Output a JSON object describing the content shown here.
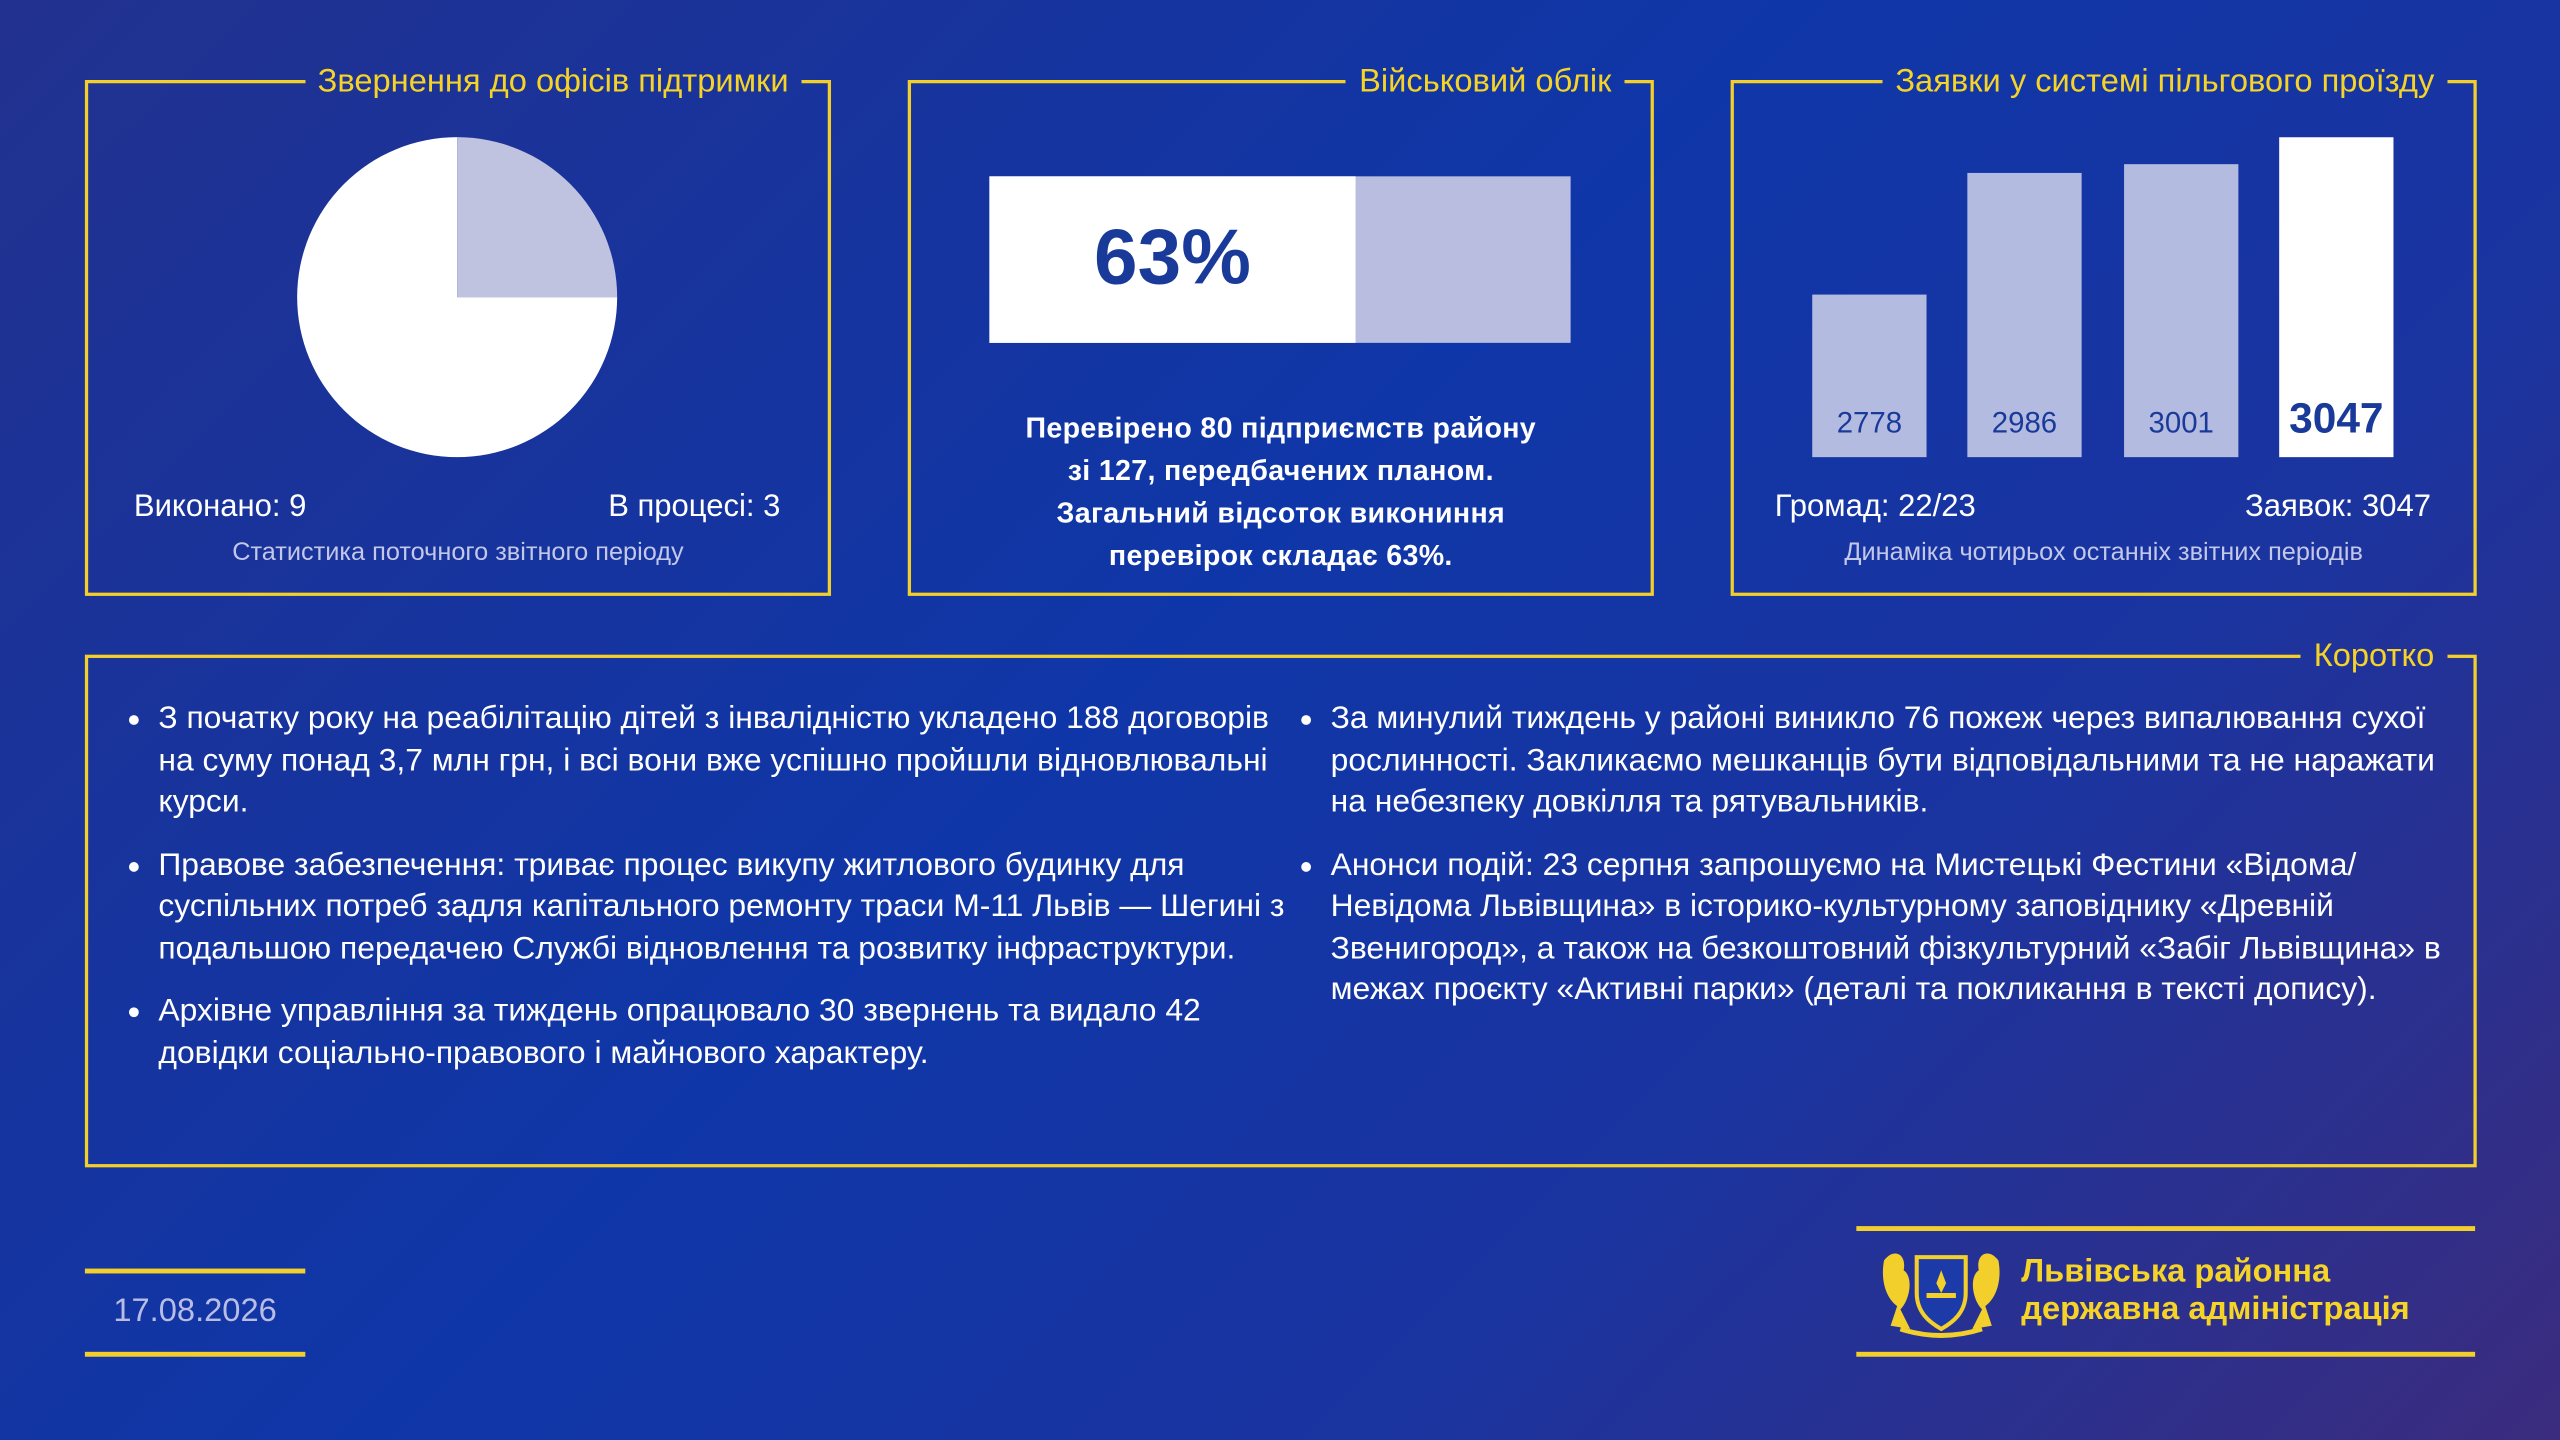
{
  "panels": [
    {
      "title": "Звернення до офісів підтримки",
      "pie": {
        "type": "pie",
        "slices": [
          {
            "label": "Виконано:",
            "value": 9,
            "color": "#ffffff"
          },
          {
            "label": "В процесі:",
            "value": 3,
            "color": "#c0c3e0"
          }
        ]
      },
      "note": "Статистика поточного звітного періоду"
    },
    {
      "title": "Військовий облік",
      "progress": {
        "type": "progress",
        "value": 63,
        "value_label": "63%",
        "xlim": [
          0,
          100
        ],
        "color": "#ffffff",
        "track_color": "#b9bee0"
      },
      "text_lines": [
        "Перевірено 80 підприємств району",
        "зі 127, передбачених планом.",
        "Загальний відсоток викониння",
        "перевірок складає 63%."
      ]
    },
    {
      "title": "Заявки у системі пільгового проїзду",
      "bars": {
        "type": "bar",
        "values": [
          2778,
          2986,
          3001,
          3047
        ],
        "colors": [
          "#b4bbe0",
          "#b4bbe0",
          "#b4bbe0",
          "#ffffff"
        ],
        "ylim": [
          2500,
          3050
        ]
      },
      "stats": [
        "Громад: 22/23",
        "Заявок: 3047"
      ],
      "note": "Динаміка чотирьох останніх звітних періодів"
    }
  ],
  "summary": {
    "title": "Коротко",
    "left": [
      "З початку року на реабілітацію дітей з інвалідністю укладено 188 договорів на суму понад 3,7 млн грн, і всі вони вже успішно пройшли відновлювальні курси.",
      "Правове забезпечення: триває процес викупу житлового будинку для суспільних потреб задля капітального ремонту траси М-11 Львів — Шегині з подальшою передачею Службі відновлення та розвитку інфраструктури.",
      "Архівне управління за тиждень опрацювало 30 звернень та видало 42 довідки соціально-правового і майнового характеру."
    ],
    "right": [
      "За минулий тиждень у районі виникло 76 пожеж через випалювання сухої рослинності. Закликаємо мешканців бути відповідальними та не наражати на небезпеку довкілля та рятувальників.",
      "Анонси подій: 23 серпня запрошуємо на Мистецькі Фестини «Відома/Невідома Львівщина» в історико-культурному заповіднику «Древній Звенигород», а також на безкоштовний фізкультурний «Забіг Львівщина» в межах проєкту «Активні парки» (деталі та покликання в тексті допису)."
    ]
  },
  "footer": {
    "date": "17.08.2026",
    "org_lines": [
      "Львівська районна",
      "державна адміністрація"
    ]
  }
}
